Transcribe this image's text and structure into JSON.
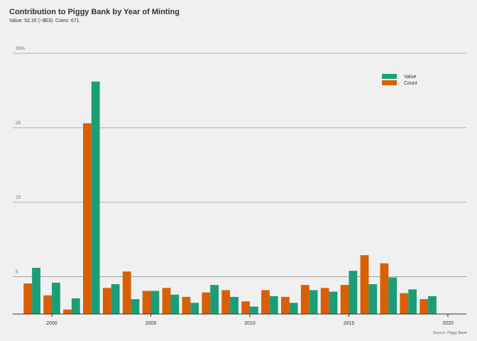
{
  "colors": {
    "background": "#f0f0f0",
    "value": "#1b9e77",
    "count": "#d95f02",
    "grid": "#999999",
    "axis": "#333333",
    "text": "#333333",
    "muted": "#666666"
  },
  "chart_data": {
    "type": "bar",
    "title": "Contribution to Piggy Bank by Year of Minting",
    "subtitle": "Value: 52.1€ (~$63). Coins: 671.",
    "caption": "Source: Piggy Bank",
    "y_ticks": [
      "5",
      "15",
      "25",
      "35%"
    ],
    "y_tick_values": [
      5,
      15,
      25,
      35
    ],
    "x_ticks": [
      "2000",
      "2005",
      "2010",
      "2015",
      "2020"
    ],
    "x_tick_values": [
      2000,
      2005,
      2010,
      2015,
      2020
    ],
    "ylim": [
      0,
      35
    ],
    "grid": true,
    "legend_position": "top-right",
    "years": [
      1999,
      2000,
      2001,
      2002,
      2003,
      2004,
      2005,
      2006,
      2007,
      2008,
      2009,
      2010,
      2011,
      2012,
      2013,
      2014,
      2015,
      2016,
      2017,
      2018,
      2019,
      2020
    ],
    "series": [
      {
        "name": "Value",
        "color": "#1b9e77",
        "values": [
          6.2,
          4.2,
          2.1,
          31.2,
          4.0,
          2.0,
          3.1,
          2.6,
          1.5,
          3.9,
          2.3,
          1.0,
          2.4,
          1.5,
          3.2,
          3.0,
          5.8,
          4.0,
          4.9,
          3.3,
          2.4,
          null
        ]
      },
      {
        "name": "Count",
        "color": "#d95f02",
        "values": [
          4.1,
          2.5,
          0.6,
          25.6,
          3.5,
          5.7,
          3.1,
          3.5,
          2.3,
          2.9,
          3.2,
          1.7,
          3.2,
          2.3,
          3.9,
          3.5,
          3.9,
          7.9,
          6.8,
          2.8,
          2.0,
          null
        ]
      }
    ]
  }
}
